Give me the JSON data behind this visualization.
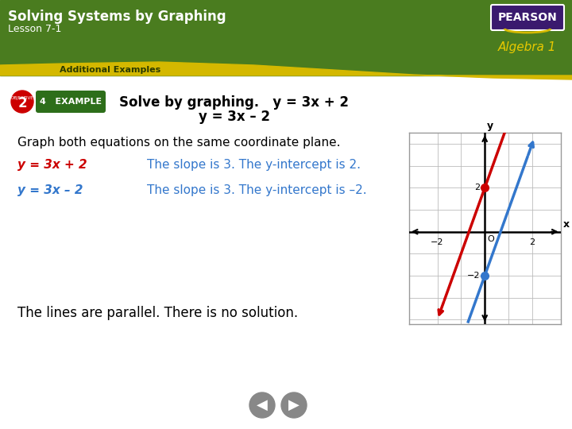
{
  "title": "Solving Systems by Graphing",
  "subtitle": "Lesson 7-1",
  "section": "Additional Examples",
  "algebra_label": "Algebra 1",
  "header_green": "#4a7c1f",
  "header_yellow": "#d4b800",
  "pearson_bg": "#3a1a6e",
  "pearson_text": "PEARSON",
  "objective_num": "2",
  "example_num": "4",
  "solve_text": "Solve by graphing.",
  "eq1": "y = 3x + 2",
  "eq2": "y = 3x – 2",
  "graph_text": "Graph both equations on the same coordinate plane.",
  "eq1_label": "y = 3x + 2",
  "eq1_desc": "The slope is 3. The y-intercept is 2.",
  "eq2_label": "y = 3x – 2",
  "eq2_desc": "The slope is 3. The y-intercept is –2.",
  "conclusion": "The lines are parallel. There is no solution.",
  "line1_color": "#cc0000",
  "line2_color": "#3377cc",
  "eq1_label_color": "#cc0000",
  "eq2_label_color": "#3377cc",
  "desc_color": "#3377cc",
  "body_text_color": "#222222",
  "bg_white": "#ffffff"
}
